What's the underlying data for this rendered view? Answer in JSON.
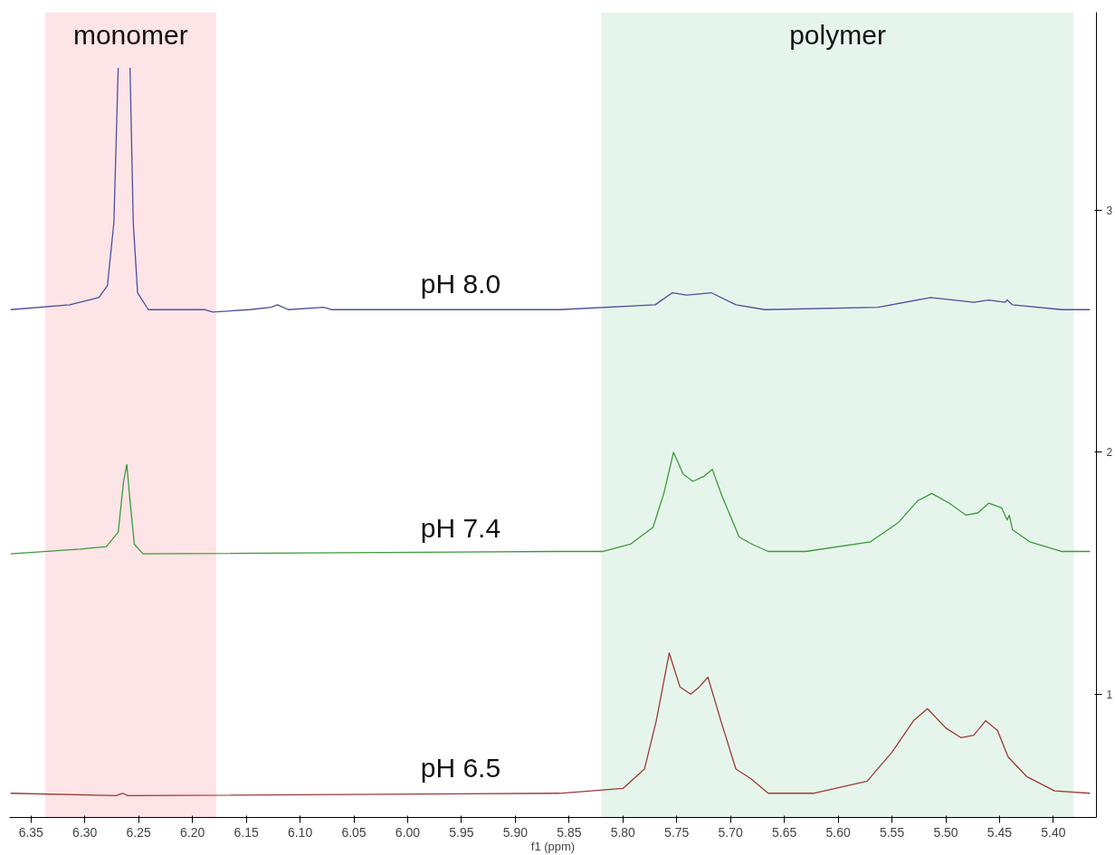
{
  "chart_data": {
    "type": "line",
    "xlabel": "f1 (ppm)",
    "xlim": [
      6.37,
      5.36
    ],
    "ylim": [
      0.49,
      3.82
    ],
    "xticks": [
      6.35,
      {
        "value": 6.3,
        "label": "6.30"
      },
      6.25,
      {
        "value": 6.2,
        "label": "6.20"
      },
      6.15,
      {
        "value": 6.1,
        "label": "6.10"
      },
      6.05,
      {
        "value": 6.0,
        "label": "6.00"
      },
      5.95,
      {
        "value": 5.9,
        "label": "5.90"
      },
      5.85,
      {
        "value": 5.8,
        "label": "5.80"
      },
      5.75,
      {
        "value": 5.7,
        "label": "5.70"
      },
      5.65,
      {
        "value": 5.6,
        "label": "5.60"
      },
      5.55,
      {
        "value": 5.5,
        "label": "5.50"
      },
      5.45,
      {
        "value": 5.4,
        "label": "5.40"
      }
    ],
    "yticks": [
      1,
      2,
      3
    ],
    "grid": false,
    "bands": [
      {
        "axis": "x",
        "from": 6.337,
        "to": 6.178,
        "label": "monomer",
        "color": "#fde4e6"
      },
      {
        "axis": "x",
        "from": 5.82,
        "to": 5.381,
        "label": "polymer",
        "color": "#e6f5eb"
      }
    ],
    "series": [
      {
        "name": "pH 8.0",
        "color": "#4b4fa0",
        "x": [
          6.369,
          6.314,
          6.287,
          6.279,
          6.273,
          6.269,
          6.263,
          6.258,
          6.255,
          6.251,
          6.241,
          6.189,
          6.181,
          6.147,
          6.127,
          6.121,
          6.111,
          6.078,
          6.071,
          5.859,
          5.77,
          5.754,
          5.741,
          5.718,
          5.695,
          5.668,
          5.563,
          5.514,
          5.474,
          5.46,
          5.445,
          5.443,
          5.438,
          5.392,
          5.366
        ],
        "values": [
          2.59,
          2.61,
          2.64,
          2.69,
          2.95,
          3.59,
          null,
          3.59,
          2.95,
          2.66,
          2.59,
          2.59,
          2.58,
          2.59,
          2.6,
          2.61,
          2.59,
          2.6,
          2.59,
          2.59,
          2.61,
          2.66,
          2.65,
          2.66,
          2.61,
          2.59,
          2.6,
          2.64,
          2.62,
          2.63,
          2.62,
          2.63,
          2.61,
          2.59,
          2.59
        ]
      },
      {
        "name": "pH 7.4",
        "color": "#3a9a3a",
        "x": [
          6.369,
          6.304,
          6.28,
          6.269,
          6.264,
          6.261,
          6.258,
          6.254,
          6.246,
          5.859,
          5.819,
          5.793,
          5.772,
          5.762,
          5.753,
          5.744,
          5.735,
          5.725,
          5.717,
          5.708,
          5.692,
          5.68,
          5.665,
          5.63,
          5.57,
          5.544,
          5.526,
          5.513,
          5.497,
          5.481,
          5.47,
          5.46,
          5.448,
          5.443,
          5.441,
          5.438,
          5.422,
          5.392,
          5.366
        ],
        "values": [
          1.58,
          1.6,
          1.61,
          1.67,
          1.88,
          1.95,
          1.8,
          1.62,
          1.58,
          1.59,
          1.59,
          1.62,
          1.69,
          1.83,
          2.0,
          1.91,
          1.88,
          1.9,
          1.93,
          1.82,
          1.65,
          1.62,
          1.59,
          1.59,
          1.63,
          1.71,
          1.8,
          1.83,
          1.79,
          1.74,
          1.75,
          1.79,
          1.77,
          1.72,
          1.74,
          1.68,
          1.63,
          1.59,
          1.59
        ]
      },
      {
        "name": "pH 6.5",
        "color": "#9b3a3a",
        "x": [
          6.369,
          6.271,
          6.265,
          6.26,
          5.859,
          5.8,
          5.78,
          5.769,
          5.757,
          5.747,
          5.737,
          5.729,
          5.721,
          5.709,
          5.695,
          5.681,
          5.665,
          5.623,
          5.573,
          5.55,
          5.53,
          5.517,
          5.5,
          5.486,
          5.474,
          5.463,
          5.452,
          5.442,
          5.425,
          5.399,
          5.366
        ],
        "values": [
          0.59,
          0.58,
          0.59,
          0.58,
          0.59,
          0.61,
          0.69,
          0.89,
          1.17,
          1.03,
          1.0,
          1.03,
          1.07,
          0.89,
          0.69,
          0.65,
          0.59,
          0.59,
          0.64,
          0.76,
          0.89,
          0.94,
          0.86,
          0.82,
          0.83,
          0.89,
          0.85,
          0.74,
          0.66,
          0.6,
          0.59
        ]
      }
    ]
  }
}
